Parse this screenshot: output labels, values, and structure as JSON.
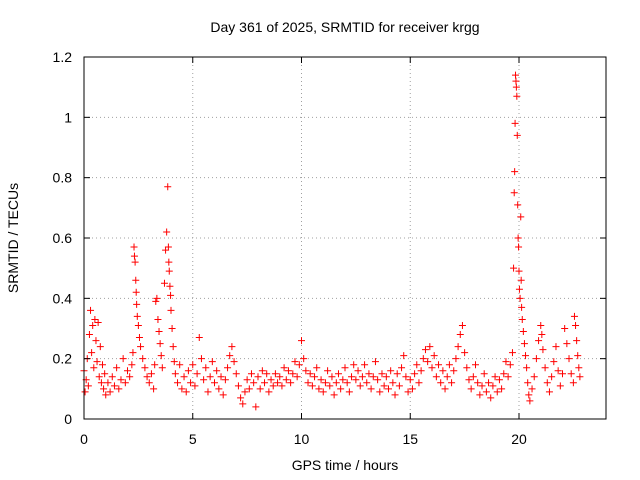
{
  "chart_data": {
    "type": "scatter",
    "title": "Day 361 of 2025, SRMTID for receiver krgg",
    "xlabel": "GPS time / hours",
    "ylabel": "SRMTID / TECUs",
    "xlim": [
      0,
      24
    ],
    "ylim": [
      0,
      1.2
    ],
    "xticks": [
      0,
      5,
      10,
      15,
      20
    ],
    "xtick_labels": [
      "0",
      "5",
      "10",
      "15",
      "20"
    ],
    "yticks": [
      0,
      0.2,
      0.4,
      0.6,
      0.8,
      1.0,
      1.2
    ],
    "ytick_labels": [
      "0",
      "0.2",
      "0.4",
      "0.6",
      "0.8",
      "1",
      "1.2"
    ],
    "grid": true,
    "marker": "+",
    "series": [
      {
        "name": "SRMTID",
        "color": "#ff0000",
        "points": [
          [
            0.0,
            0.16
          ],
          [
            0.05,
            0.09
          ],
          [
            0.1,
            0.13
          ],
          [
            0.15,
            0.2
          ],
          [
            0.2,
            0.11
          ],
          [
            0.25,
            0.28
          ],
          [
            0.3,
            0.36
          ],
          [
            0.35,
            0.22
          ],
          [
            0.4,
            0.31
          ],
          [
            0.45,
            0.17
          ],
          [
            0.5,
            0.33
          ],
          [
            0.55,
            0.26
          ],
          [
            0.6,
            0.19
          ],
          [
            0.65,
            0.32
          ],
          [
            0.7,
            0.14
          ],
          [
            0.75,
            0.24
          ],
          [
            0.8,
            0.12
          ],
          [
            0.85,
            0.18
          ],
          [
            0.9,
            0.1
          ],
          [
            0.95,
            0.15
          ],
          [
            1.0,
            0.08
          ],
          [
            1.1,
            0.12
          ],
          [
            1.2,
            0.09
          ],
          [
            1.3,
            0.14
          ],
          [
            1.4,
            0.11
          ],
          [
            1.5,
            0.17
          ],
          [
            1.6,
            0.1
          ],
          [
            1.7,
            0.13
          ],
          [
            1.8,
            0.2
          ],
          [
            1.9,
            0.12
          ],
          [
            2.0,
            0.16
          ],
          [
            2.1,
            0.14
          ],
          [
            2.2,
            0.18
          ],
          [
            2.25,
            0.22
          ],
          [
            2.3,
            0.57
          ],
          [
            2.32,
            0.54
          ],
          [
            2.35,
            0.52
          ],
          [
            2.38,
            0.46
          ],
          [
            2.4,
            0.42
          ],
          [
            2.42,
            0.38
          ],
          [
            2.45,
            0.34
          ],
          [
            2.5,
            0.31
          ],
          [
            2.55,
            0.27
          ],
          [
            2.6,
            0.24
          ],
          [
            2.7,
            0.2
          ],
          [
            2.8,
            0.17
          ],
          [
            2.9,
            0.14
          ],
          [
            3.0,
            0.12
          ],
          [
            3.1,
            0.15
          ],
          [
            3.2,
            0.1
          ],
          [
            3.25,
            0.18
          ],
          [
            3.3,
            0.39
          ],
          [
            3.35,
            0.4
          ],
          [
            3.4,
            0.33
          ],
          [
            3.45,
            0.29
          ],
          [
            3.5,
            0.25
          ],
          [
            3.55,
            0.21
          ],
          [
            3.6,
            0.17
          ],
          [
            3.7,
            0.45
          ],
          [
            3.75,
            0.56
          ],
          [
            3.8,
            0.62
          ],
          [
            3.85,
            0.77
          ],
          [
            3.88,
            0.57
          ],
          [
            3.9,
            0.52
          ],
          [
            3.92,
            0.49
          ],
          [
            3.95,
            0.44
          ],
          [
            3.98,
            0.41
          ],
          [
            4.0,
            0.36
          ],
          [
            4.05,
            0.3
          ],
          [
            4.1,
            0.24
          ],
          [
            4.15,
            0.19
          ],
          [
            4.2,
            0.15
          ],
          [
            4.3,
            0.12
          ],
          [
            4.4,
            0.18
          ],
          [
            4.5,
            0.1
          ],
          [
            4.6,
            0.14
          ],
          [
            4.7,
            0.09
          ],
          [
            4.8,
            0.16
          ],
          [
            4.9,
            0.12
          ],
          [
            5.0,
            0.18
          ],
          [
            5.1,
            0.11
          ],
          [
            5.2,
            0.15
          ],
          [
            5.3,
            0.27
          ],
          [
            5.4,
            0.2
          ],
          [
            5.5,
            0.13
          ],
          [
            5.6,
            0.17
          ],
          [
            5.7,
            0.09
          ],
          [
            5.8,
            0.14
          ],
          [
            5.9,
            0.19
          ],
          [
            6.0,
            0.12
          ],
          [
            6.1,
            0.16
          ],
          [
            6.2,
            0.1
          ],
          [
            6.3,
            0.14
          ],
          [
            6.4,
            0.08
          ],
          [
            6.5,
            0.13
          ],
          [
            6.6,
            0.17
          ],
          [
            6.7,
            0.21
          ],
          [
            6.8,
            0.24
          ],
          [
            6.9,
            0.19
          ],
          [
            7.0,
            0.15
          ],
          [
            7.1,
            0.11
          ],
          [
            7.2,
            0.07
          ],
          [
            7.3,
            0.05
          ],
          [
            7.4,
            0.09
          ],
          [
            7.5,
            0.13
          ],
          [
            7.6,
            0.1
          ],
          [
            7.7,
            0.15
          ],
          [
            7.8,
            0.12
          ],
          [
            7.9,
            0.04
          ],
          [
            8.0,
            0.14
          ],
          [
            8.1,
            0.1
          ],
          [
            8.2,
            0.16
          ],
          [
            8.3,
            0.12
          ],
          [
            8.4,
            0.15
          ],
          [
            8.5,
            0.09
          ],
          [
            8.6,
            0.13
          ],
          [
            8.7,
            0.11
          ],
          [
            8.8,
            0.15
          ],
          [
            8.9,
            0.12
          ],
          [
            9.0,
            0.14
          ],
          [
            9.1,
            0.11
          ],
          [
            9.2,
            0.17
          ],
          [
            9.3,
            0.13
          ],
          [
            9.4,
            0.16
          ],
          [
            9.5,
            0.12
          ],
          [
            9.6,
            0.15
          ],
          [
            9.7,
            0.19
          ],
          [
            9.8,
            0.14
          ],
          [
            9.9,
            0.18
          ],
          [
            10.0,
            0.26
          ],
          [
            10.1,
            0.2
          ],
          [
            10.2,
            0.16
          ],
          [
            10.3,
            0.12
          ],
          [
            10.4,
            0.15
          ],
          [
            10.5,
            0.11
          ],
          [
            10.6,
            0.14
          ],
          [
            10.7,
            0.17
          ],
          [
            10.8,
            0.1
          ],
          [
            10.9,
            0.13
          ],
          [
            11.0,
            0.09
          ],
          [
            11.1,
            0.12
          ],
          [
            11.2,
            0.16
          ],
          [
            11.3,
            0.11
          ],
          [
            11.4,
            0.14
          ],
          [
            11.5,
            0.08
          ],
          [
            11.6,
            0.12
          ],
          [
            11.7,
            0.15
          ],
          [
            11.8,
            0.1
          ],
          [
            11.9,
            0.13
          ],
          [
            12.0,
            0.17
          ],
          [
            12.1,
            0.12
          ],
          [
            12.2,
            0.09
          ],
          [
            12.3,
            0.14
          ],
          [
            12.4,
            0.18
          ],
          [
            12.5,
            0.13
          ],
          [
            12.6,
            0.16
          ],
          [
            12.7,
            0.11
          ],
          [
            12.8,
            0.14
          ],
          [
            12.9,
            0.18
          ],
          [
            13.0,
            0.12
          ],
          [
            13.1,
            0.15
          ],
          [
            13.2,
            0.1
          ],
          [
            13.3,
            0.14
          ],
          [
            13.4,
            0.19
          ],
          [
            13.5,
            0.13
          ],
          [
            13.6,
            0.09
          ],
          [
            13.7,
            0.15
          ],
          [
            13.8,
            0.11
          ],
          [
            13.9,
            0.14
          ],
          [
            14.0,
            0.1
          ],
          [
            14.1,
            0.16
          ],
          [
            14.2,
            0.12
          ],
          [
            14.3,
            0.08
          ],
          [
            14.4,
            0.15
          ],
          [
            14.5,
            0.11
          ],
          [
            14.6,
            0.17
          ],
          [
            14.7,
            0.21
          ],
          [
            14.8,
            0.14
          ],
          [
            14.9,
            0.09
          ],
          [
            15.0,
            0.13
          ],
          [
            15.1,
            0.1
          ],
          [
            15.2,
            0.15
          ],
          [
            15.3,
            0.18
          ],
          [
            15.4,
            0.12
          ],
          [
            15.5,
            0.16
          ],
          [
            15.6,
            0.2
          ],
          [
            15.7,
            0.23
          ],
          [
            15.8,
            0.19
          ],
          [
            15.9,
            0.24
          ],
          [
            16.0,
            0.17
          ],
          [
            16.1,
            0.21
          ],
          [
            16.2,
            0.14
          ],
          [
            16.3,
            0.18
          ],
          [
            16.4,
            0.12
          ],
          [
            16.5,
            0.16
          ],
          [
            16.6,
            0.1
          ],
          [
            16.7,
            0.14
          ],
          [
            16.8,
            0.18
          ],
          [
            16.9,
            0.12
          ],
          [
            17.0,
            0.16
          ],
          [
            17.1,
            0.2
          ],
          [
            17.2,
            0.24
          ],
          [
            17.3,
            0.28
          ],
          [
            17.4,
            0.31
          ],
          [
            17.5,
            0.22
          ],
          [
            17.6,
            0.17
          ],
          [
            17.7,
            0.13
          ],
          [
            17.8,
            0.1
          ],
          [
            17.9,
            0.14
          ],
          [
            18.0,
            0.18
          ],
          [
            18.1,
            0.12
          ],
          [
            18.2,
            0.08
          ],
          [
            18.3,
            0.11
          ],
          [
            18.4,
            0.15
          ],
          [
            18.5,
            0.09
          ],
          [
            18.6,
            0.12
          ],
          [
            18.7,
            0.07
          ],
          [
            18.8,
            0.11
          ],
          [
            18.9,
            0.14
          ],
          [
            19.0,
            0.09
          ],
          [
            19.1,
            0.13
          ],
          [
            19.2,
            0.1
          ],
          [
            19.3,
            0.15
          ],
          [
            19.4,
            0.19
          ],
          [
            19.5,
            0.14
          ],
          [
            19.6,
            0.18
          ],
          [
            19.7,
            0.22
          ],
          [
            19.75,
            0.5
          ],
          [
            19.78,
            0.75
          ],
          [
            19.8,
            0.82
          ],
          [
            19.82,
            0.98
          ],
          [
            19.84,
            1.14
          ],
          [
            19.86,
            1.12
          ],
          [
            19.88,
            1.1
          ],
          [
            19.9,
            1.07
          ],
          [
            19.92,
            0.94
          ],
          [
            19.94,
            0.71
          ],
          [
            19.96,
            0.6
          ],
          [
            19.98,
            0.57
          ],
          [
            20.0,
            0.49
          ],
          [
            20.02,
            0.43
          ],
          [
            20.05,
            0.4
          ],
          [
            20.08,
            0.67
          ],
          [
            20.1,
            0.46
          ],
          [
            20.12,
            0.37
          ],
          [
            20.15,
            0.33
          ],
          [
            20.2,
            0.29
          ],
          [
            20.25,
            0.25
          ],
          [
            20.3,
            0.21
          ],
          [
            20.35,
            0.17
          ],
          [
            20.4,
            0.12
          ],
          [
            20.45,
            0.08
          ],
          [
            20.5,
            0.06
          ],
          [
            20.6,
            0.1
          ],
          [
            20.7,
            0.14
          ],
          [
            20.8,
            0.2
          ],
          [
            20.9,
            0.26
          ],
          [
            21.0,
            0.31
          ],
          [
            21.05,
            0.28
          ],
          [
            21.1,
            0.23
          ],
          [
            21.2,
            0.17
          ],
          [
            21.3,
            0.12
          ],
          [
            21.4,
            0.09
          ],
          [
            21.5,
            0.14
          ],
          [
            21.6,
            0.19
          ],
          [
            21.7,
            0.24
          ],
          [
            21.8,
            0.16
          ],
          [
            21.9,
            0.11
          ],
          [
            22.0,
            0.15
          ],
          [
            22.1,
            0.3
          ],
          [
            22.2,
            0.25
          ],
          [
            22.3,
            0.2
          ],
          [
            22.4,
            0.15
          ],
          [
            22.5,
            0.12
          ],
          [
            22.55,
            0.34
          ],
          [
            22.6,
            0.31
          ],
          [
            22.65,
            0.26
          ],
          [
            22.7,
            0.21
          ],
          [
            22.75,
            0.17
          ],
          [
            22.8,
            0.14
          ]
        ]
      }
    ]
  }
}
